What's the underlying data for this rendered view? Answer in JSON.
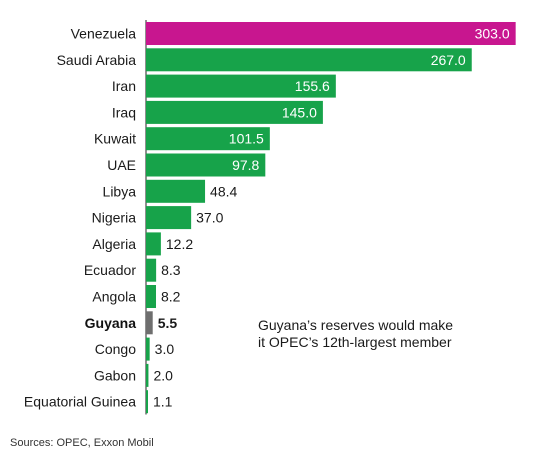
{
  "chart_data": {
    "type": "bar",
    "orientation": "horizontal",
    "categories": [
      "Venezuela",
      "Saudi Arabia",
      "Iran",
      "Iraq",
      "Kuwait",
      "UAE",
      "Libya",
      "Nigeria",
      "Algeria",
      "Ecuador",
      "Angola",
      "Guyana",
      "Congo",
      "Gabon",
      "Equatorial Guinea"
    ],
    "values": [
      303.0,
      267.0,
      155.6,
      145.0,
      101.5,
      97.8,
      48.4,
      37.0,
      12.2,
      8.3,
      8.2,
      5.5,
      3.0,
      2.0,
      1.1
    ],
    "value_labels": [
      "303.0",
      "267.0",
      "155.6",
      "145.0",
      "101.5",
      "97.8",
      "48.4",
      "37.0",
      "12.2",
      "8.3",
      "8.2",
      "5.5",
      "3.0",
      "2.0",
      "1.1"
    ],
    "highlight": {
      "Venezuela": "#c8168f",
      "Guyana": "#6e6e6e"
    },
    "default_color": "#17a34a",
    "bold_categories": [
      "Guyana"
    ],
    "annotation": "Guyana’s reserves would make it OPEC’s 12th-largest member",
    "source": "Sources: OPEC, Exxon Mobil",
    "title": "",
    "xlabel": "",
    "ylabel": ""
  }
}
